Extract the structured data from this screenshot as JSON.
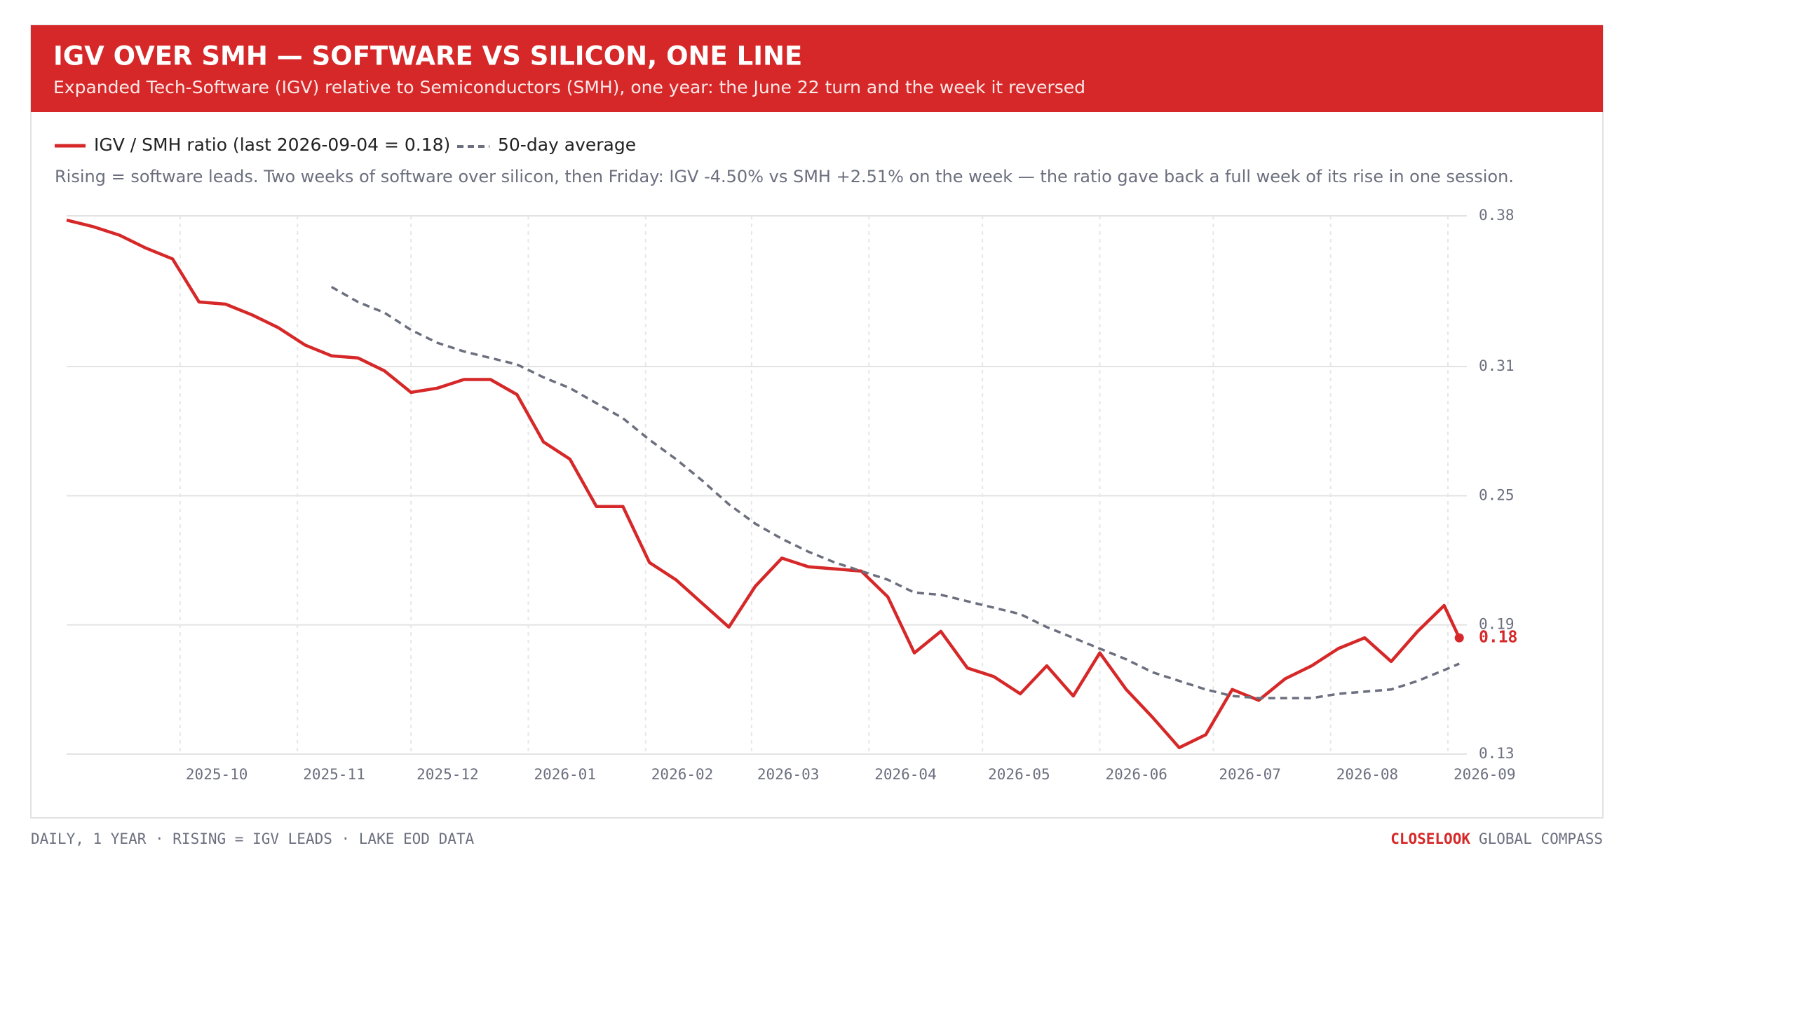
{
  "chart_data": {
    "type": "line",
    "title": "IGV OVER SMH — SOFTWARE VS SILICON, ONE LINE",
    "subtitle": "Expanded Tech-Software (IGV) relative to Semiconductors (SMH), one year: the June 22 turn and the week it reversed",
    "note": "Rising = software leads. Two weeks of software over silicon, then Friday: IGV -4.50% vs SMH +2.51% on the week — the ratio gave back a full week of its rise in one session.",
    "footer_left": "DAILY, 1 YEAR · RISING = IGV LEADS · LAKE EOD DATA",
    "footer_brand": "CLOSELOOK",
    "footer_right": "GLOBAL COMPASS",
    "x": [
      "2025-09-01",
      "2025-09-08",
      "2025-09-15",
      "2025-09-22",
      "2025-09-29",
      "2025-10-06",
      "2025-10-13",
      "2025-10-20",
      "2025-10-27",
      "2025-11-03",
      "2025-11-10",
      "2025-11-17",
      "2025-11-24",
      "2025-12-01",
      "2025-12-08",
      "2025-12-15",
      "2025-12-22",
      "2025-12-29",
      "2026-01-05",
      "2026-01-12",
      "2026-01-19",
      "2026-01-26",
      "2026-02-02",
      "2026-02-09",
      "2026-02-16",
      "2026-02-23",
      "2026-03-02",
      "2026-03-09",
      "2026-03-16",
      "2026-03-23",
      "2026-03-30",
      "2026-04-06",
      "2026-04-13",
      "2026-04-20",
      "2026-04-27",
      "2026-05-04",
      "2026-05-11",
      "2026-05-18",
      "2026-05-25",
      "2026-06-01",
      "2026-06-08",
      "2026-06-15",
      "2026-06-22",
      "2026-06-29",
      "2026-07-06",
      "2026-07-13",
      "2026-07-20",
      "2026-07-27",
      "2026-08-03",
      "2026-08-10",
      "2026-08-17",
      "2026-08-24",
      "2026-08-31",
      "2026-09-04"
    ],
    "series": [
      {
        "name": "IGV / SMH ratio (last 2026-09-04 = 0.18)",
        "color": "#d62828",
        "dash": false,
        "values": [
          0.378,
          0.375,
          0.371,
          0.365,
          0.36,
          0.34,
          0.339,
          0.334,
          0.328,
          0.32,
          0.315,
          0.314,
          0.308,
          0.298,
          0.3,
          0.304,
          0.304,
          0.297,
          0.275,
          0.267,
          0.245,
          0.245,
          0.219,
          0.211,
          0.2,
          0.189,
          0.208,
          0.221,
          0.217,
          0.216,
          0.215,
          0.203,
          0.177,
          0.187,
          0.17,
          0.166,
          0.158,
          0.171,
          0.157,
          0.177,
          0.16,
          0.147,
          0.133,
          0.139,
          0.16,
          0.155,
          0.165,
          0.171,
          0.179,
          0.184,
          0.173,
          0.187,
          0.199,
          0.184
        ],
        "value_labels": [
          null,
          null,
          null,
          null,
          null,
          null,
          null,
          null,
          null,
          null,
          null,
          null,
          null,
          null,
          null,
          null,
          null,
          null,
          null,
          null,
          null,
          null,
          null,
          null,
          null,
          null,
          null,
          null,
          null,
          null,
          null,
          null,
          null,
          null,
          null,
          null,
          null,
          null,
          null,
          null,
          null,
          null,
          null,
          null,
          null,
          null,
          null,
          null,
          null,
          null,
          null,
          null,
          null,
          "0.18"
        ]
      },
      {
        "name": "50-day average",
        "color": "#6b6f7e",
        "dash": true,
        "values": [
          null,
          null,
          null,
          null,
          null,
          null,
          null,
          null,
          null,
          null,
          0.347,
          0.34,
          0.335,
          0.327,
          0.321,
          0.317,
          0.314,
          0.311,
          0.305,
          0.3,
          0.293,
          0.286,
          0.276,
          0.267,
          0.257,
          0.246,
          0.237,
          0.23,
          0.224,
          0.219,
          0.215,
          0.211,
          0.205,
          0.204,
          0.201,
          0.198,
          0.195,
          0.189,
          0.184,
          0.179,
          0.174,
          0.168,
          0.164,
          0.16,
          0.157,
          0.156,
          0.156,
          0.156,
          0.158,
          0.159,
          0.16,
          0.164,
          0.169,
          0.172
        ]
      }
    ],
    "xlim": [
      "2025-09-01",
      "2026-09-06"
    ],
    "xticks": [
      {
        "value": "2025-10-01",
        "label": "2025-10"
      },
      {
        "value": "2025-11-01",
        "label": "2025-11"
      },
      {
        "value": "2025-12-01",
        "label": "2025-12"
      },
      {
        "value": "2026-01-01",
        "label": "2026-01"
      },
      {
        "value": "2026-02-01",
        "label": "2026-02"
      },
      {
        "value": "2026-03-01",
        "label": "2026-03"
      },
      {
        "value": "2026-04-01",
        "label": "2026-04"
      },
      {
        "value": "2026-05-01",
        "label": "2026-05"
      },
      {
        "value": "2026-06-01",
        "label": "2026-06"
      },
      {
        "value": "2026-07-01",
        "label": "2026-07"
      },
      {
        "value": "2026-08-01",
        "label": "2026-08"
      },
      {
        "value": "2026-09-01",
        "label": "2026-09"
      }
    ],
    "ylim": [
      0.13,
      0.38
    ],
    "yticks": [
      0.13,
      0.19,
      0.25,
      0.31,
      0.38
    ],
    "grid": true
  }
}
